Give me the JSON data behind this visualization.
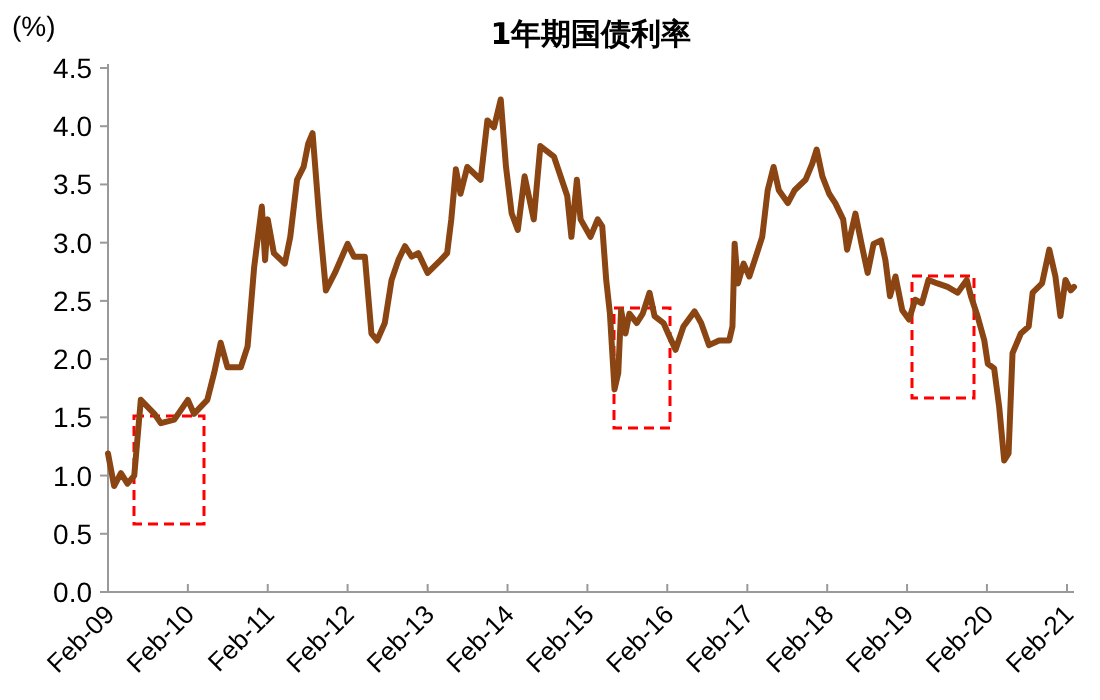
{
  "chart_data": {
    "type": "line",
    "title": "1年期国债利率",
    "ylabel": "(%)",
    "x": [
      "2009-02-01",
      "2009-03-01",
      "2009-04-01",
      "2009-05-01",
      "2009-06-01",
      "2009-07-01",
      "2009-09-01",
      "2009-10-01",
      "2009-12-01",
      "2010-02-01",
      "2010-03-01",
      "2010-05-01",
      "2010-06-01",
      "2010-07-01",
      "2010-08-01",
      "2010-10-01",
      "2010-11-01",
      "2010-12-01",
      "2011-01-05",
      "2011-01-20",
      "2011-02-01",
      "2011-03-01",
      "2011-04-20",
      "2011-05-15",
      "2011-06-15",
      "2011-07-15",
      "2011-08-05",
      "2011-08-25",
      "2011-09-25",
      "2011-10-25",
      "2011-12-05",
      "2012-02-01",
      "2012-03-01",
      "2012-04-20",
      "2012-05-20",
      "2012-06-15",
      "2012-07-20",
      "2012-08-20",
      "2012-09-20",
      "2012-10-20",
      "2012-11-20",
      "2012-12-20",
      "2013-02-01",
      "2013-04-01",
      "2013-05-01",
      "2013-05-20",
      "2013-06-10",
      "2013-07-01",
      "2013-08-01",
      "2013-10-01",
      "2013-11-01",
      "2013-12-01",
      "2014-01-01",
      "2014-01-25",
      "2014-02-20",
      "2014-03-20",
      "2014-04-20",
      "2014-06-01",
      "2014-07-01",
      "2014-09-01",
      "2014-11-01",
      "2014-11-20",
      "2014-12-15",
      "2015-01-01",
      "2015-02-15",
      "2015-03-20",
      "2015-04-10",
      "2015-04-28",
      "2015-05-15",
      "2015-06-05",
      "2015-06-22",
      "2015-07-05",
      "2015-07-25",
      "2015-08-12",
      "2015-09-15",
      "2015-10-12",
      "2015-11-12",
      "2015-12-05",
      "2016-01-15",
      "2016-02-05",
      "2016-03-10",
      "2016-04-15",
      "2016-06-05",
      "2016-07-05",
      "2016-08-10",
      "2016-09-25",
      "2016-11-10",
      "2016-11-25",
      "2016-12-05",
      "2016-12-20",
      "2017-01-15",
      "2017-02-10",
      "2017-03-12",
      "2017-04-10",
      "2017-05-05",
      "2017-06-01",
      "2017-06-25",
      "2017-08-05",
      "2017-09-05",
      "2017-10-25",
      "2017-11-25",
      "2017-12-15",
      "2018-01-10",
      "2018-02-10",
      "2018-03-10",
      "2018-04-15",
      "2018-05-03",
      "2018-06-10",
      "2018-07-10",
      "2018-08-05",
      "2018-09-01",
      "2018-10-05",
      "2018-10-25",
      "2018-11-15",
      "2018-12-10",
      "2019-01-10",
      "2019-02-10",
      "2019-03-10",
      "2019-04-10",
      "2019-05-10",
      "2019-06-20",
      "2019-08-05",
      "2019-09-20",
      "2019-11-01",
      "2019-11-20",
      "2019-12-20",
      "2020-01-20",
      "2020-02-05",
      "2020-03-05",
      "2020-03-28",
      "2020-04-20",
      "2020-05-10",
      "2020-05-28",
      "2020-07-05",
      "2020-08-10",
      "2020-08-28",
      "2020-10-10",
      "2020-11-12",
      "2020-12-10",
      "2021-01-02",
      "2021-01-25",
      "2021-02-18",
      "2021-03-05"
    ],
    "series": [
      {
        "color": "#8b4513",
        "values": [
          1.19,
          0.91,
          1.02,
          0.93,
          1.0,
          1.65,
          1.53,
          1.45,
          1.48,
          1.65,
          1.53,
          1.65,
          1.88,
          2.14,
          1.93,
          1.93,
          2.11,
          2.79,
          3.31,
          2.85,
          3.2,
          2.91,
          2.82,
          3.05,
          3.54,
          3.65,
          3.85,
          3.94,
          3.2,
          2.59,
          2.74,
          2.99,
          2.88,
          2.88,
          2.22,
          2.16,
          2.31,
          2.68,
          2.85,
          2.97,
          2.88,
          2.91,
          2.74,
          2.85,
          2.91,
          3.2,
          3.63,
          3.42,
          3.65,
          3.54,
          4.05,
          3.99,
          4.23,
          3.65,
          3.25,
          3.11,
          3.57,
          3.2,
          3.83,
          3.74,
          3.4,
          3.05,
          3.54,
          3.2,
          3.05,
          3.2,
          3.14,
          2.68,
          2.39,
          1.74,
          1.88,
          2.42,
          2.22,
          2.39,
          2.31,
          2.39,
          2.57,
          2.37,
          2.31,
          2.22,
          2.08,
          2.28,
          2.41,
          2.31,
          2.12,
          2.16,
          2.16,
          2.28,
          2.99,
          2.65,
          2.82,
          2.71,
          2.88,
          3.05,
          3.45,
          3.65,
          3.45,
          3.34,
          3.45,
          3.54,
          3.68,
          3.8,
          3.57,
          3.42,
          3.34,
          3.2,
          2.94,
          3.25,
          2.97,
          2.74,
          2.99,
          3.02,
          2.85,
          2.54,
          2.71,
          2.42,
          2.34,
          2.51,
          2.48,
          2.68,
          2.65,
          2.62,
          2.57,
          2.68,
          2.54,
          2.37,
          2.16,
          1.96,
          1.92,
          1.59,
          1.13,
          1.19,
          2.05,
          2.22,
          2.28,
          2.57,
          2.65,
          2.94,
          2.71,
          2.37,
          2.68,
          2.59,
          2.62
        ]
      }
    ],
    "xlim": [
      "2009-02-01",
      "2021-03-05"
    ],
    "xticks": [
      {
        "value": "2009-02-01",
        "label": "Feb-09"
      },
      {
        "value": "2010-02-01",
        "label": "Feb-10"
      },
      {
        "value": "2011-02-01",
        "label": "Feb-11"
      },
      {
        "value": "2012-02-01",
        "label": "Feb-12"
      },
      {
        "value": "2013-02-01",
        "label": "Feb-13"
      },
      {
        "value": "2014-02-01",
        "label": "Feb-14"
      },
      {
        "value": "2015-02-01",
        "label": "Feb-15"
      },
      {
        "value": "2016-02-01",
        "label": "Feb-16"
      },
      {
        "value": "2017-02-01",
        "label": "Feb-17"
      },
      {
        "value": "2018-02-01",
        "label": "Feb-18"
      },
      {
        "value": "2019-02-01",
        "label": "Feb-19"
      },
      {
        "value": "2020-02-01",
        "label": "Feb-20"
      },
      {
        "value": "2021-02-01",
        "label": "Feb-21"
      }
    ],
    "ylim": [
      0,
      4.5
    ],
    "yticks": [
      {
        "value": 0,
        "label": "0.0"
      },
      {
        "value": 0.5,
        "label": "0.5"
      },
      {
        "value": 1,
        "label": "1.0"
      },
      {
        "value": 1.5,
        "label": "1.5"
      },
      {
        "value": 2,
        "label": "2.0"
      },
      {
        "value": 2.5,
        "label": "2.5"
      },
      {
        "value": 3,
        "label": "3.0"
      },
      {
        "value": 3.5,
        "label": "3.5"
      },
      {
        "value": 4,
        "label": "4.0"
      },
      {
        "value": 4.5,
        "label": "4.5"
      }
    ],
    "grid": false,
    "line_style": "solid",
    "marker": "none"
  }
}
